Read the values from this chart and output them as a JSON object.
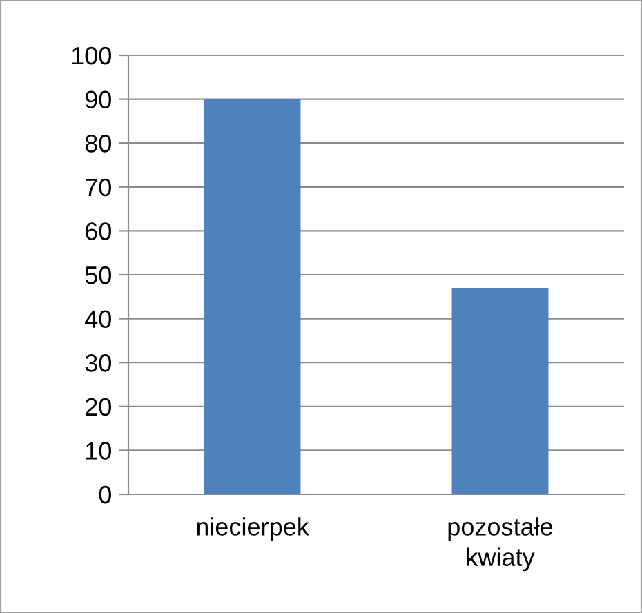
{
  "chart_data": {
    "type": "bar",
    "categories": [
      "niecierpek",
      "pozostałe\nkwiaty"
    ],
    "values": [
      90,
      47
    ],
    "color": "#4f81bd",
    "ylim": [
      0,
      100
    ],
    "yticks": [
      0,
      10,
      20,
      30,
      40,
      50,
      60,
      70,
      80,
      90,
      100
    ],
    "grid": "y",
    "legend": false
  }
}
